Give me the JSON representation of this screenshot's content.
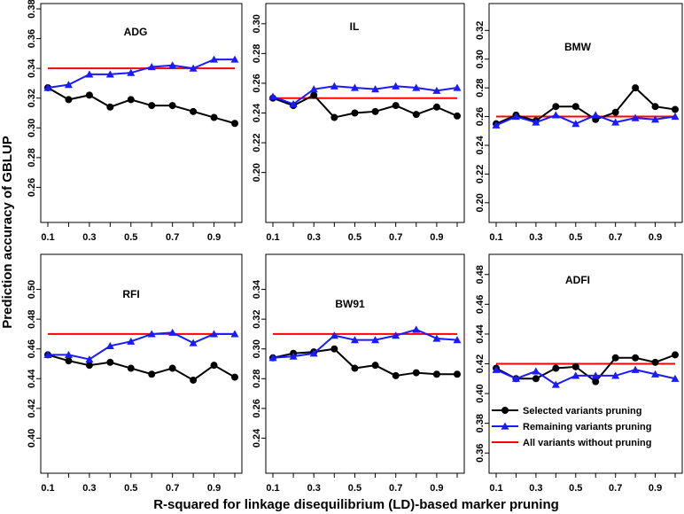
{
  "figure": {
    "xlabel": "R-squared for linkage disequilibrium (LD)-based marker pruning",
    "ylabel": "Prediction accuracy of GBLUP"
  },
  "legend": {
    "position": "bottom-right",
    "items": [
      {
        "label": "Selected variants pruning",
        "color": "#000000",
        "marker": "circle"
      },
      {
        "label": "Remaining variants pruning",
        "color": "#1a1aff",
        "marker": "triangle"
      },
      {
        "label": "All variants without pruning",
        "color": "#ff0000",
        "marker": "none"
      }
    ]
  },
  "colors": {
    "selected": "#000000",
    "remaining": "#1a1aff",
    "baseline": "#ff0000"
  },
  "chart_data": [
    {
      "type": "line",
      "title": "ADG",
      "x": [
        0.1,
        0.2,
        0.3,
        0.4,
        0.5,
        0.6,
        0.7,
        0.8,
        0.9,
        1.0
      ],
      "xticks": [
        "0.1",
        "0.3",
        "0.5",
        "0.7",
        "0.9"
      ],
      "xlim": [
        0.1,
        1.0
      ],
      "ylim": [
        0.24,
        0.38
      ],
      "yticks": [
        "0.26",
        "0.28",
        "0.30",
        "0.32",
        "0.34",
        "0.36",
        "0.38"
      ],
      "series": [
        {
          "name": "Selected variants pruning",
          "values": [
            0.327,
            0.319,
            0.322,
            0.314,
            0.319,
            0.315,
            0.315,
            0.311,
            0.307,
            0.303
          ]
        },
        {
          "name": "Remaining variants pruning",
          "values": [
            0.327,
            0.329,
            0.336,
            0.336,
            0.337,
            0.341,
            0.342,
            0.34,
            0.346,
            0.346
          ]
        }
      ],
      "baseline": 0.34
    },
    {
      "type": "line",
      "title": "IL",
      "x": [
        0.1,
        0.2,
        0.3,
        0.4,
        0.5,
        0.6,
        0.7,
        0.8,
        0.9,
        1.0
      ],
      "xticks": [
        "0.1",
        "0.3",
        "0.5",
        "0.7",
        "0.9"
      ],
      "xlim": [
        0.1,
        1.0
      ],
      "ylim": [
        0.17,
        0.31
      ],
      "yticks": [
        "0.20",
        "0.22",
        "0.24",
        "0.26",
        "0.28",
        "0.30"
      ],
      "series": [
        {
          "name": "Selected variants pruning",
          "values": [
            0.25,
            0.245,
            0.252,
            0.237,
            0.24,
            0.241,
            0.245,
            0.239,
            0.244,
            0.238
          ]
        },
        {
          "name": "Remaining variants pruning",
          "values": [
            0.251,
            0.246,
            0.256,
            0.258,
            0.257,
            0.256,
            0.258,
            0.257,
            0.255,
            0.257
          ]
        }
      ],
      "baseline": 0.25
    },
    {
      "type": "line",
      "title": "BMW",
      "x": [
        0.1,
        0.2,
        0.3,
        0.4,
        0.5,
        0.6,
        0.7,
        0.8,
        0.9,
        1.0
      ],
      "xticks": [
        "0.1",
        "0.3",
        "0.5",
        "0.7",
        "0.9"
      ],
      "xlim": [
        0.1,
        1.0
      ],
      "ylim": [
        0.19,
        0.335
      ],
      "yticks": [
        "0.20",
        "0.22",
        "0.24",
        "0.26",
        "0.28",
        "0.30",
        "0.32"
      ],
      "series": [
        {
          "name": "Selected variants pruning",
          "values": [
            0.255,
            0.261,
            0.257,
            0.267,
            0.267,
            0.258,
            0.263,
            0.28,
            0.267,
            0.265
          ]
        },
        {
          "name": "Remaining variants pruning",
          "values": [
            0.254,
            0.26,
            0.256,
            0.261,
            0.255,
            0.261,
            0.256,
            0.259,
            0.258,
            0.26
          ]
        }
      ],
      "baseline": 0.26
    },
    {
      "type": "line",
      "title": "RFI",
      "x": [
        0.1,
        0.2,
        0.3,
        0.4,
        0.5,
        0.6,
        0.7,
        0.8,
        0.9,
        1.0
      ],
      "xticks": [
        "0.1",
        "0.3",
        "0.5",
        "0.7",
        "0.9"
      ],
      "xlim": [
        0.1,
        1.0
      ],
      "ylim": [
        0.38,
        0.52
      ],
      "yticks": [
        "0.40",
        "0.42",
        "0.44",
        "0.46",
        "0.48",
        "0.50"
      ],
      "series": [
        {
          "name": "Selected variants pruning",
          "values": [
            0.456,
            0.452,
            0.449,
            0.451,
            0.447,
            0.443,
            0.447,
            0.439,
            0.449,
            0.441
          ]
        },
        {
          "name": "Remaining variants pruning",
          "values": [
            0.456,
            0.456,
            0.453,
            0.462,
            0.465,
            0.47,
            0.471,
            0.464,
            0.47,
            0.47
          ]
        }
      ],
      "baseline": 0.47
    },
    {
      "type": "line",
      "title": "BW91",
      "x": [
        0.1,
        0.2,
        0.3,
        0.4,
        0.5,
        0.6,
        0.7,
        0.8,
        0.9,
        1.0
      ],
      "xticks": [
        "0.1",
        "0.3",
        "0.5",
        "0.7",
        "0.9"
      ],
      "xlim": [
        0.1,
        1.0
      ],
      "ylim": [
        0.22,
        0.36
      ],
      "yticks": [
        "0.24",
        "0.26",
        "0.28",
        "0.30",
        "0.32",
        "0.34"
      ],
      "series": [
        {
          "name": "Selected variants pruning",
          "values": [
            0.294,
            0.297,
            0.298,
            0.3,
            0.287,
            0.289,
            0.282,
            0.284,
            0.283,
            0.283
          ]
        },
        {
          "name": "Remaining variants pruning",
          "values": [
            0.294,
            0.295,
            0.297,
            0.309,
            0.306,
            0.306,
            0.309,
            0.313,
            0.307,
            0.306
          ]
        }
      ],
      "baseline": 0.31
    },
    {
      "type": "line",
      "title": "ADFI",
      "x": [
        0.1,
        0.2,
        0.3,
        0.4,
        0.5,
        0.6,
        0.7,
        0.8,
        0.9,
        1.0
      ],
      "xticks": [
        "0.1",
        "0.3",
        "0.5",
        "0.7",
        "0.9"
      ],
      "xlim": [
        0.1,
        1.0
      ],
      "ylim": [
        0.35,
        0.49
      ],
      "yticks": [
        "0.36",
        "0.38",
        "0.40",
        "0.42",
        "0.44",
        "0.46",
        "0.48"
      ],
      "series": [
        {
          "name": "Selected variants pruning",
          "values": [
            0.417,
            0.41,
            0.41,
            0.417,
            0.418,
            0.408,
            0.424,
            0.424,
            0.421,
            0.426
          ]
        },
        {
          "name": "Remaining variants pruning",
          "values": [
            0.416,
            0.41,
            0.415,
            0.406,
            0.412,
            0.412,
            0.412,
            0.416,
            0.413,
            0.41
          ]
        }
      ],
      "baseline": 0.42
    }
  ]
}
